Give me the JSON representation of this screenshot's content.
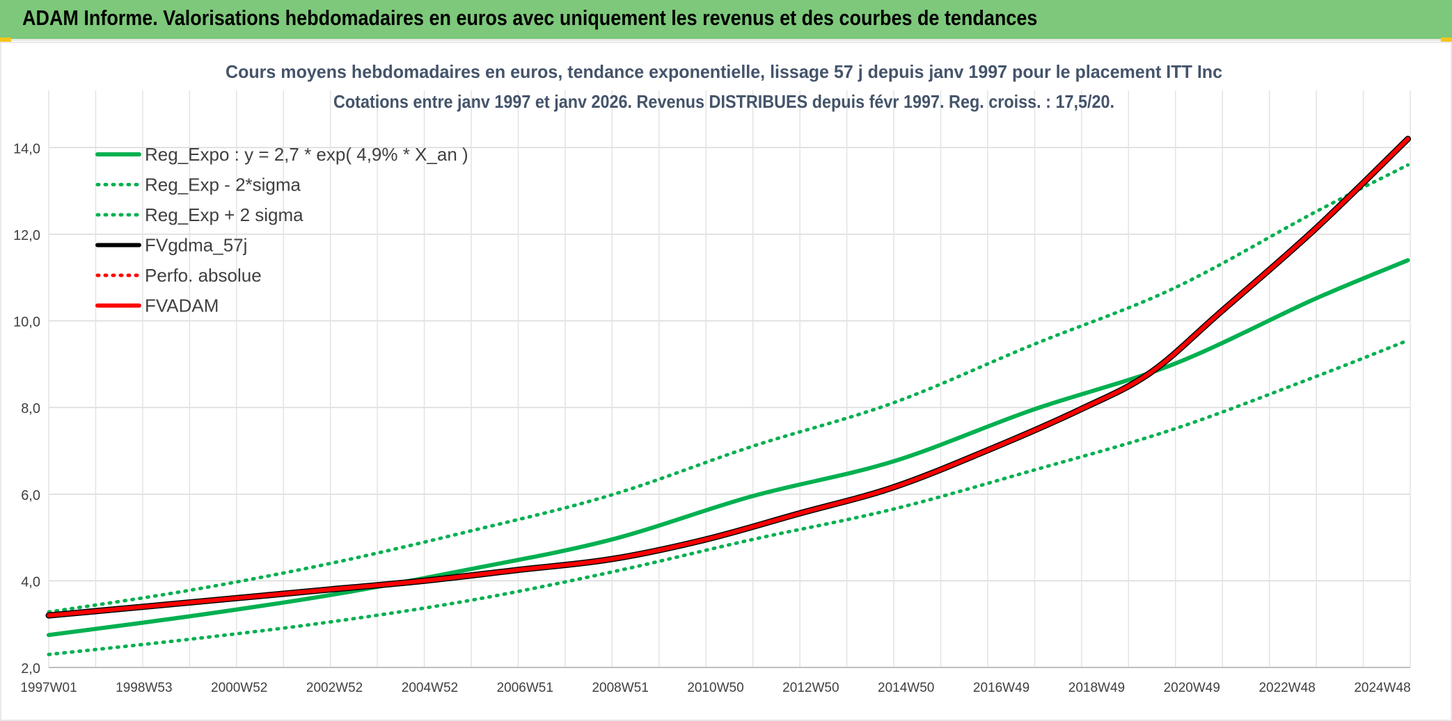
{
  "header": {
    "title": "ADAM Informe. Valorisations hebdomadaires en euros avec uniquement les revenus et des courbes de tendances"
  },
  "colors": {
    "header_bg": "#7dc87b",
    "reg_green": "#00b050",
    "fvadam_red": "#ff0000",
    "gdma_black": "#000000",
    "grid": "#d9d9d9"
  },
  "chart_data": {
    "type": "line",
    "title": "Cours moyens hebdomadaires en euros, tendance exponentielle, lissage 57 j depuis janv 1997 pour le placement ITT Inc",
    "subtitle": "Cotations entre janv 1997 et janv 2026. Revenus DISTRIBUES depuis févr 1997. Reg. croiss. : 17,5/20.",
    "xlabel": "",
    "ylabel": "",
    "x_ticks": [
      "1997W01",
      "1998W53",
      "2000W52",
      "2002W52",
      "2004W52",
      "2006W51",
      "2008W51",
      "2010W50",
      "2012W50",
      "2014W50",
      "2016W49",
      "2018W49",
      "2020W49",
      "2022W48",
      "2024W48"
    ],
    "x_range_years": [
      1997.0,
      2026.05
    ],
    "y_ticks": [
      "2,0",
      "4,0",
      "6,0",
      "8,0",
      "10,0",
      "12,0",
      "14,0"
    ],
    "ylim": [
      2.0,
      15.0
    ],
    "grid": true,
    "legend_position": "top-left",
    "series": [
      {
        "name": "Reg_Expo : y = 2,7 * exp( 4,9% *  X_an )",
        "style": "solid",
        "color": "#00b050",
        "x": [
          1997,
          2000,
          2003,
          2006,
          2009,
          2012,
          2015,
          2018,
          2021,
          2024,
          2026
        ],
        "y": [
          2.75,
          3.18,
          3.67,
          4.27,
          4.95,
          5.95,
          6.75,
          7.95,
          9.0,
          10.5,
          11.4
        ]
      },
      {
        "name": "Reg_Exp - 2*sigma",
        "style": "dotted",
        "color": "#00b050",
        "x": [
          1997,
          2000,
          2003,
          2006,
          2009,
          2012,
          2015,
          2018,
          2021,
          2024,
          2026
        ],
        "y": [
          2.3,
          2.65,
          3.05,
          3.55,
          4.2,
          4.95,
          5.65,
          6.55,
          7.5,
          8.7,
          9.55
        ]
      },
      {
        "name": "Reg_Exp + 2 sigma",
        "style": "dotted",
        "color": "#00b050",
        "x": [
          1997,
          2000,
          2003,
          2006,
          2009,
          2012,
          2015,
          2018,
          2021,
          2024,
          2026
        ],
        "y": [
          3.28,
          3.78,
          4.4,
          5.15,
          5.98,
          7.1,
          8.1,
          9.45,
          10.75,
          12.5,
          13.6
        ]
      },
      {
        "name": "FVgdma_57j",
        "style": "solid",
        "color": "#000000",
        "x": [
          1997,
          1999,
          2001,
          2003,
          2005,
          2007,
          2009,
          2011,
          2013,
          2015,
          2017,
          2019,
          2020.5,
          2022,
          2024,
          2026
        ],
        "y": [
          3.2,
          3.4,
          3.6,
          3.8,
          4.0,
          4.25,
          4.5,
          4.95,
          5.55,
          6.15,
          7.0,
          7.95,
          8.8,
          10.2,
          12.1,
          14.2
        ]
      },
      {
        "name": "Perfo. absolue",
        "style": "dotted",
        "color": "#ff0000",
        "x": [],
        "y": []
      },
      {
        "name": "FVADAM",
        "style": "solid",
        "color": "#ff0000",
        "x": [
          1997,
          1999,
          2001,
          2003,
          2005,
          2007,
          2009,
          2011,
          2013,
          2015,
          2017,
          2019,
          2020.5,
          2022,
          2024,
          2026
        ],
        "y": [
          3.2,
          3.4,
          3.6,
          3.8,
          4.0,
          4.25,
          4.5,
          4.95,
          5.55,
          6.15,
          7.0,
          7.95,
          8.8,
          10.2,
          12.1,
          14.2
        ]
      }
    ]
  }
}
